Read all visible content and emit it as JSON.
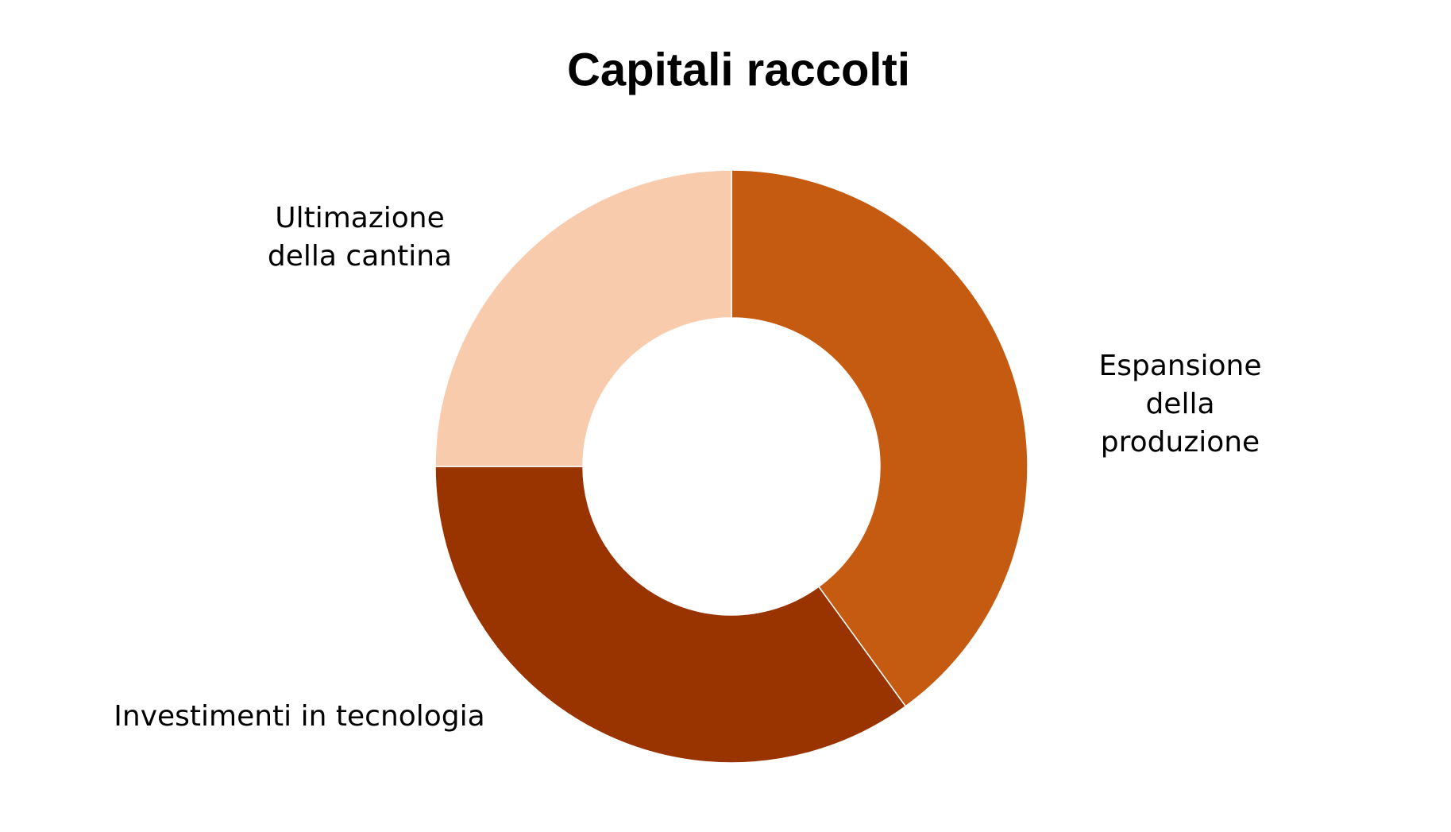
{
  "chart_data": {
    "type": "donut",
    "title": "Capitali raccolti",
    "categories": [
      "Espansione della produzione",
      "Investimenti in tecnologia",
      "Ultimazione della cantina"
    ],
    "values": [
      40,
      35,
      25
    ],
    "colors": [
      "#c55a11",
      "#993300",
      "#f8cbad"
    ]
  }
}
